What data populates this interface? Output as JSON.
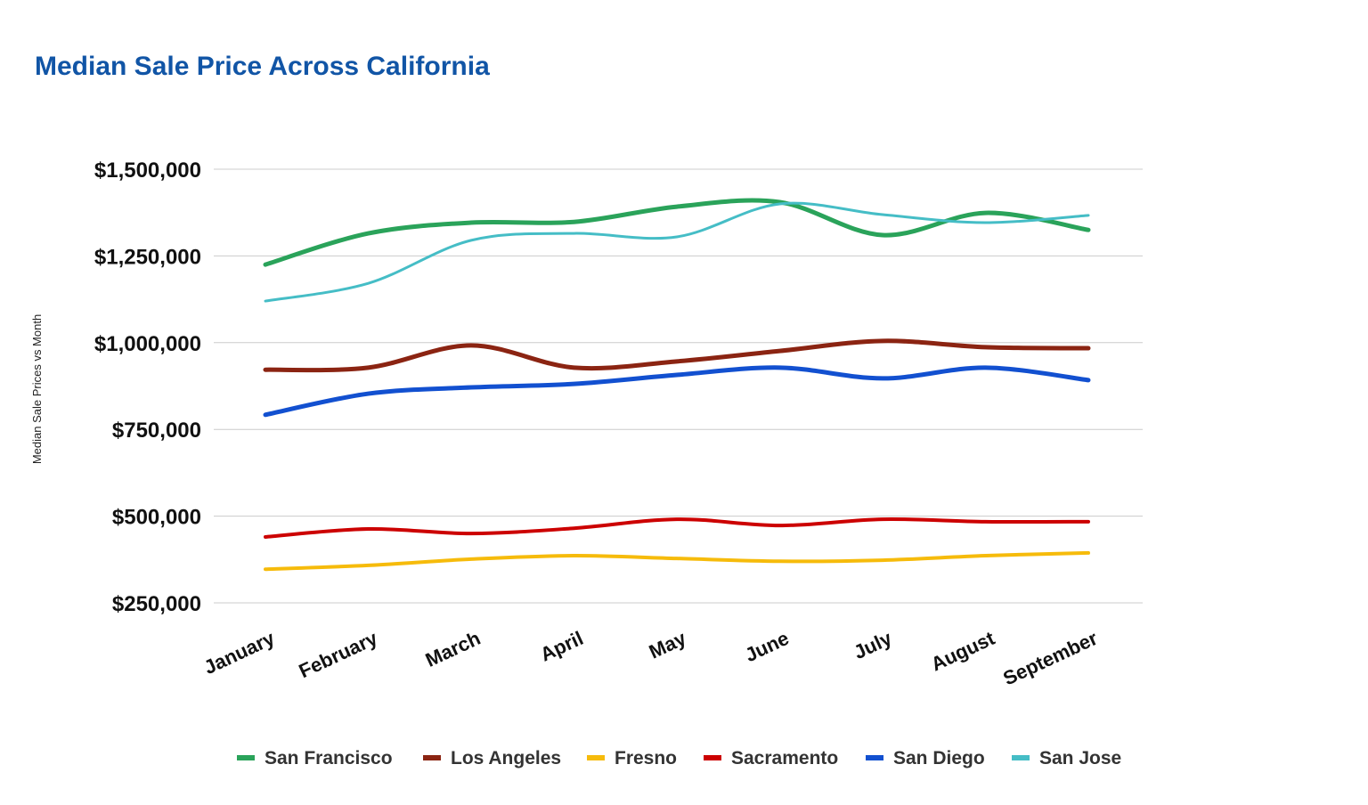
{
  "chart_data": {
    "type": "line",
    "title": "Median Sale Price Across California",
    "xlabel": "",
    "ylabel": "Median Sale Prices vs Month",
    "categories": [
      "January",
      "February",
      "March",
      "April",
      "May",
      "June",
      "July",
      "August",
      "September"
    ],
    "ylim": [
      250000,
      1500000
    ],
    "yticks": [
      250000,
      500000,
      750000,
      1000000,
      1250000,
      1500000
    ],
    "ytick_labels": [
      "$250,000",
      "$500,000",
      "$750,000",
      "$1,000,000",
      "$1,250,000",
      "$1,500,000"
    ],
    "grid": true,
    "legend": "bottom",
    "series": [
      {
        "name": "San Francisco",
        "color": "#2aa35a",
        "values": [
          1225000,
          1315000,
          1346000,
          1348000,
          1392000,
          1405000,
          1310000,
          1374000,
          1325000
        ]
      },
      {
        "name": "Los Angeles",
        "color": "#8b2412",
        "values": [
          922000,
          928000,
          992000,
          928000,
          946000,
          976000,
          1005000,
          987000,
          984000
        ]
      },
      {
        "name": "Fresno",
        "color": "#f6bb0b",
        "values": [
          347000,
          358000,
          376000,
          386000,
          378000,
          370000,
          373000,
          386000,
          394000
        ]
      },
      {
        "name": "Sacramento",
        "color": "#cc0000",
        "values": [
          440000,
          463000,
          450000,
          465000,
          491000,
          473000,
          491000,
          484000,
          484000
        ]
      },
      {
        "name": "San Diego",
        "color": "#1250d0",
        "values": [
          792000,
          853000,
          871000,
          881000,
          907000,
          928000,
          897000,
          928000,
          892000
        ]
      },
      {
        "name": "San Jose",
        "color": "#45bdc6",
        "values": [
          1120000,
          1171000,
          1295000,
          1315000,
          1305000,
          1400000,
          1369000,
          1346000,
          1367000
        ]
      }
    ]
  }
}
